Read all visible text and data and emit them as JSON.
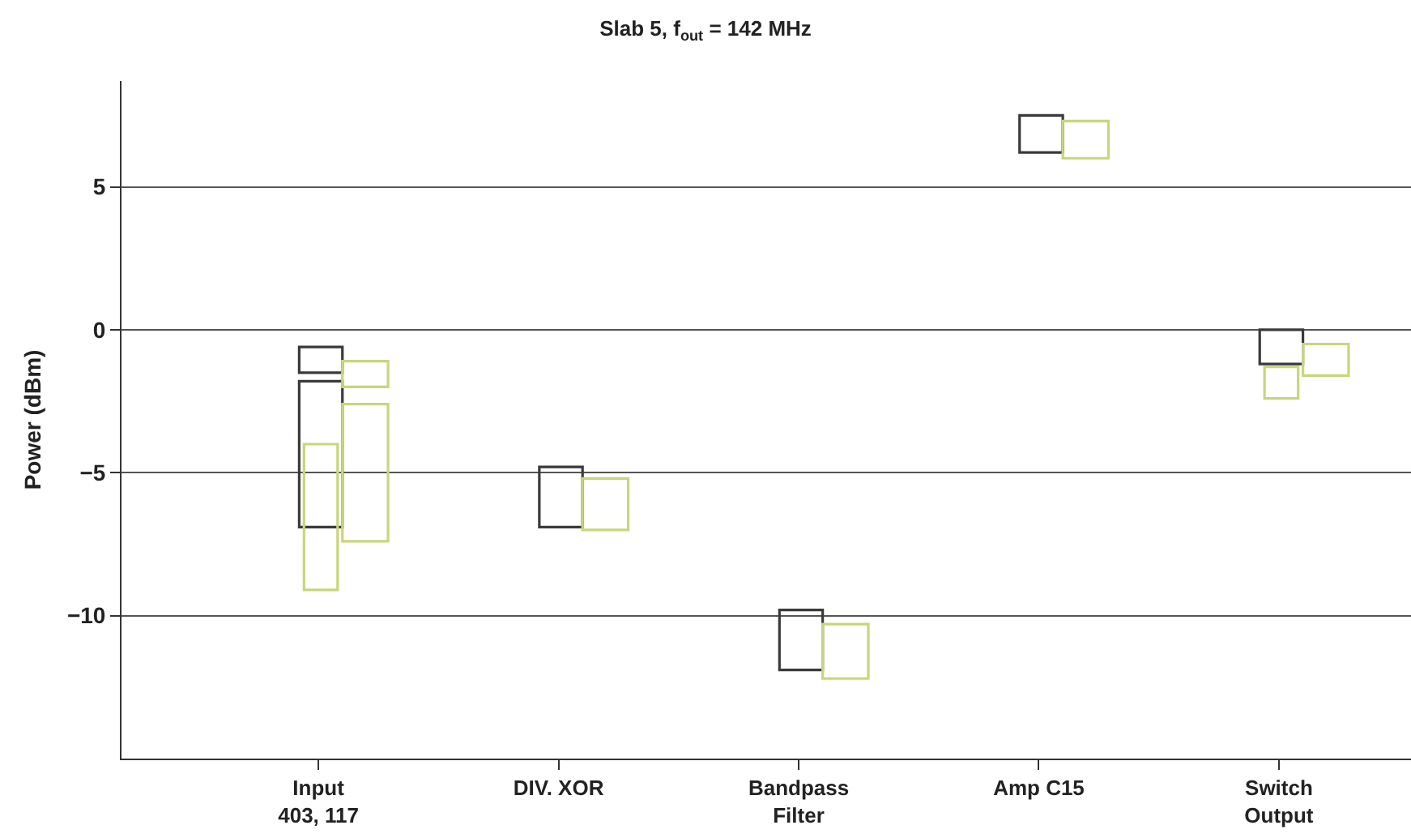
{
  "chart_data": {
    "type": "bar",
    "title": "Slab 5, f$_{out}$ = 142 MHz",
    "ylabel": "Power (dBm)",
    "categories": [
      "Input\n403, 117",
      "DIV. XOR",
      "Bandpass\nFilter",
      "Amp C15",
      "Switch\nOutput"
    ],
    "series": [
      {
        "color": "#3a3a3a",
        "base": [
          -6.9,
          -6.9,
          -11.9,
          6.2,
          -1.2
        ],
        "values": [
          5.1,
          2.1,
          2.1,
          1.3,
          1.2
        ]
      },
      {
        "color": "#3a3a3a",
        "base": [
          -1.5,
          null,
          null,
          null,
          null
        ],
        "values": [
          0.9,
          null,
          null,
          null,
          null
        ]
      },
      {
        "color": "#c8d67a",
        "base": [
          -9.1,
          null,
          null,
          null,
          -2.4
        ],
        "values": [
          5.1,
          null,
          null,
          null,
          1.1
        ]
      },
      {
        "color": "#c8d67a",
        "base": [
          -7.4,
          -7.0,
          -12.2,
          6.0,
          -1.6
        ],
        "values": [
          4.8,
          1.8,
          1.9,
          1.3,
          1.1
        ]
      },
      {
        "color": "#c8d67a",
        "base": [
          -2.0,
          null,
          null,
          null,
          null
        ],
        "values": [
          0.9,
          null,
          null,
          null,
          null
        ]
      }
    ],
    "ylim": [
      -15,
      8.7
    ],
    "yticks": [
      -10,
      -5,
      0,
      5
    ],
    "grid": "y"
  }
}
